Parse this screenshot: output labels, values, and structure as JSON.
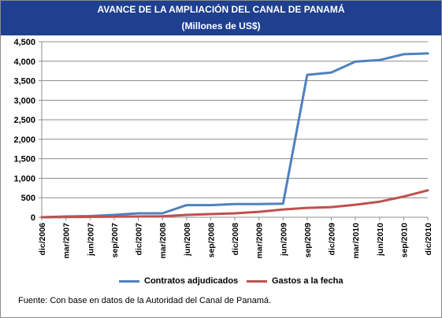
{
  "header": {
    "title": "AVANCE DE LA AMPLIACIÓN DEL CANAL DE PANAMÁ",
    "subtitle": "(Millones de US$)"
  },
  "source_note": "Fuente: Con base en datos de la Autoridad del Canal de Panamá.",
  "colors": {
    "header_bg": "#1f3f8f",
    "contratos": "#4f81bd",
    "gastos": "#c0504d"
  },
  "chart_data": {
    "type": "line",
    "title": "AVANCE DE LA AMPLIACIÓN DEL CANAL DE PANAMÁ",
    "subtitle": "(Millones de US$)",
    "xlabel": "",
    "ylabel": "",
    "ylim": [
      0,
      4500
    ],
    "yticks": [
      "0",
      "500",
      "1,000",
      "1,500",
      "2,000",
      "2,500",
      "3,000",
      "3,500",
      "4,000",
      "4,500"
    ],
    "ytick_values": [
      0,
      500,
      1000,
      1500,
      2000,
      2500,
      3000,
      3500,
      4000,
      4500
    ],
    "grid": "horizontal",
    "legend": "bottom",
    "categories": [
      "dic/2006",
      "mar/2007",
      "jun/2007",
      "sep/2007",
      "dic/2007",
      "mar/2008",
      "jun/2008",
      "sep/2008",
      "dic/2008",
      "mar/2009",
      "jun/2009",
      "sep/2009",
      "dic/2009",
      "mar/2010",
      "jun/2010",
      "sep/2010",
      "dic/2010"
    ],
    "series": [
      {
        "name": "Contratos adjudicados",
        "color": "#4f81bd",
        "values": [
          0,
          20,
          30,
          60,
          100,
          100,
          310,
          310,
          340,
          340,
          350,
          3650,
          3710,
          3990,
          4030,
          4180,
          4200
        ]
      },
      {
        "name": "Gastos a la fecha",
        "color": "#c0504d",
        "values": [
          0,
          5,
          10,
          15,
          20,
          25,
          60,
          80,
          100,
          140,
          200,
          240,
          260,
          320,
          400,
          530,
          690
        ]
      }
    ]
  }
}
